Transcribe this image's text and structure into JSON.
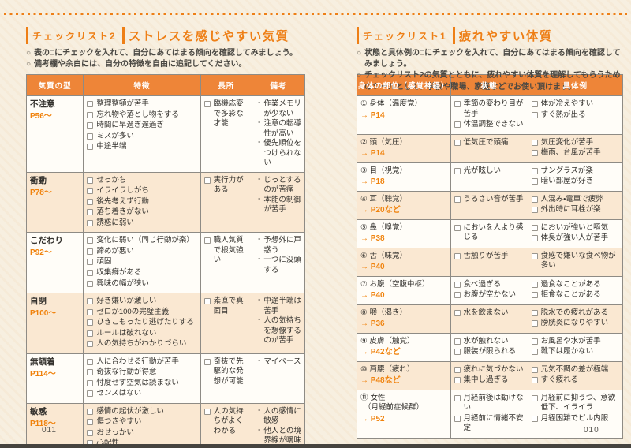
{
  "colors": {
    "accent": "#ee7f16",
    "table_header_bg": "#ee8538",
    "shaded_row_bg": "#fae8d2",
    "paper_bg": "#f7efe0",
    "page_ref_orange": "#f0820c"
  },
  "bullet_marker": "○",
  "checkbox_icon": "empty-square-checkbox",
  "left_page": {
    "page_number": "011",
    "checklist_label": "チェックリスト2",
    "title": "ストレスを感じやすい気質",
    "bullets": [
      [
        {
          "text": "表の□にチェックを入れて、",
          "underline": true
        },
        {
          "text": "自分にあてはまる傾向を確認してみましょう。",
          "underline": false
        }
      ],
      [
        {
          "text": "備考欄や余白には、",
          "underline": false
        },
        {
          "text": "自分の特徴を自由に追記",
          "underline": true
        },
        {
          "text": "してください。",
          "underline": false
        }
      ]
    ],
    "table": {
      "columns": [
        "気質の型",
        "特徴",
        "長所",
        "備考"
      ],
      "col_widths": [
        "20.5%",
        "42%",
        "18.5%",
        "19%"
      ],
      "rows": [
        {
          "type": "不注意",
          "page_ref": "P56～",
          "shaded": false,
          "features": [
            "整理整頓が苦手",
            "忘れ物や落とし物をする",
            "時間に早過ぎ遅過ぎ",
            "ミスが多い",
            "中途半端"
          ],
          "strengths": [
            "臨機応変で多彩な才能"
          ],
          "notes": [
            "作業メモリが少ない",
            "注意の転導性が高い",
            "優先順位をつけられない"
          ]
        },
        {
          "type": "衝動",
          "page_ref": "P78～",
          "shaded": true,
          "features": [
            "せっかち",
            "イライラしがち",
            "後先考えず行動",
            "落ち着きがない",
            "誘惑に弱い"
          ],
          "strengths": [
            "実行力がある"
          ],
          "notes": [
            "じっとするのが苦痛",
            "本能の制御が苦手"
          ]
        },
        {
          "type": "こだわり",
          "page_ref": "P92～",
          "shaded": false,
          "features": [
            "変化に弱い（同じ行動が楽）",
            "諦めが悪い",
            "頑固",
            "収集癖がある",
            "興味の幅が狭い"
          ],
          "strengths": [
            "職人気質で根気強い"
          ],
          "notes": [
            "予想外に戸惑う",
            "一つに没頭する"
          ]
        },
        {
          "type": "自閉",
          "page_ref": "P100～",
          "shaded": true,
          "features": [
            "好き嫌いが激しい",
            "ゼロか100の完璧主義",
            "ひきこもったり逃げたりする",
            "ルールは破れない",
            "人の気持ちがわかりづらい"
          ],
          "strengths": [
            "素直で真面目"
          ],
          "notes": [
            "中途半端は苦手",
            "人の気持ちを想像するのが苦手"
          ]
        },
        {
          "type": "無頓着",
          "page_ref": "P114～",
          "shaded": false,
          "features": [
            "人に合わせる行動が苦手",
            "奇抜な行動が得意",
            "忖度せず空気は読まない",
            "センスはない"
          ],
          "strengths": [
            "奇抜で先駆的な発想が可能"
          ],
          "notes": [
            "マイペース"
          ]
        },
        {
          "type": "敏感",
          "page_ref": "P118～",
          "shaded": true,
          "features": [
            "感情の起伏が激しい",
            "傷つきやすい",
            "おせっかい",
            "心配性",
            "依存しやすい"
          ],
          "strengths": [
            "人の気持ちがよくわかる"
          ],
          "notes": [
            "人の感情に敏感",
            "他人との境界線が曖昧"
          ]
        }
      ]
    }
  },
  "right_page": {
    "page_number": "010",
    "checklist_label": "チェックリスト1",
    "title": "疲れやすい体質",
    "bullets": [
      [
        {
          "text": "状態と具体例の□にチェックを入れて、",
          "underline": true
        },
        {
          "text": "自分にあてはまる傾向を確認してみましょう。",
          "underline": false
        }
      ],
      [
        {
          "text": "チェックリスト2の気質とともに、疲れやすい体質を理解してもらうためのツールとして、学校や職場、家庭などでお使い頂けます。",
          "underline": false
        }
      ]
    ],
    "table": {
      "columns": [
        "身体の部位（感覚神経）",
        "状態",
        "具体例"
      ],
      "col_widths": [
        "31%",
        "31%",
        "38%"
      ],
      "rows": [
        {
          "num": "①",
          "part": "身体（温度覚）",
          "page_ref": "→ P14",
          "shaded": false,
          "states": [
            "季節の変わり目が苦手",
            "体温調整できない"
          ],
          "examples": [
            "体が冷えやすい",
            "すぐ熱が出る"
          ]
        },
        {
          "num": "②",
          "part": "頭（気圧）",
          "page_ref": "→ P14",
          "shaded": true,
          "states": [
            "低気圧で頭痛"
          ],
          "examples": [
            "気圧変化が苦手",
            "梅雨、台風が苦手"
          ]
        },
        {
          "num": "③",
          "part": "目（視覚）",
          "page_ref": "→ P18",
          "shaded": false,
          "states": [
            "光が眩しい"
          ],
          "examples": [
            "サングラスが楽",
            "暗い部屋が好き"
          ]
        },
        {
          "num": "④",
          "part": "耳（聴覚）",
          "page_ref": "→ P20など",
          "shaded": true,
          "states": [
            "うるさい音が苦手"
          ],
          "examples": [
            "人混み・電車で疲弊",
            "外出時に耳栓が楽"
          ]
        },
        {
          "num": "⑤",
          "part": "鼻（嗅覚）",
          "page_ref": "→ P38",
          "shaded": false,
          "states": [
            "においを人より感じる"
          ],
          "examples": [
            "においが強いと嘔気",
            "体臭が強い人が苦手"
          ]
        },
        {
          "num": "⑥",
          "part": "舌（味覚）",
          "page_ref": "→ P40",
          "shaded": true,
          "states": [
            "舌触りが苦手"
          ],
          "examples": [
            "食感で嫌いな食べ物が多い"
          ]
        },
        {
          "num": "⑦",
          "part": "お腹（空腹中枢）",
          "page_ref": "→ P40",
          "shaded": false,
          "states": [
            "食べ過ぎる",
            "お腹が空かない"
          ],
          "examples": [
            "過食なことがある",
            "拒食なことがある"
          ]
        },
        {
          "num": "⑧",
          "part": "喉（渇き）",
          "page_ref": "→ P36",
          "shaded": true,
          "states": [
            "水を飲まない"
          ],
          "examples": [
            "脱水での疲れがある",
            "膀胱炎になりやすい"
          ]
        },
        {
          "num": "⑨",
          "part": "皮膚（触覚）",
          "page_ref": "→ P42など",
          "shaded": false,
          "states": [
            "水が触れない",
            "服装が限られる"
          ],
          "examples": [
            "お風呂や水が苦手",
            "靴下は履かない"
          ]
        },
        {
          "num": "⑩",
          "part": "肩腰（疲れ）",
          "page_ref": "→ P48など",
          "shaded": true,
          "states": [
            "疲れに気づかない",
            "集中し過ぎる"
          ],
          "examples": [
            "元気不調の差が極端",
            "すぐ疲れる"
          ]
        },
        {
          "num": "⑪",
          "part": "女性",
          "part2": "（月経前症候群）",
          "page_ref": "→ P52",
          "shaded": false,
          "states": [
            "月経前後は動けない",
            "月経前に情緒不安定"
          ],
          "examples": [
            "月経前に抑うつ、意欲低下、イライラ",
            "月経困難でピル内服"
          ]
        }
      ]
    }
  }
}
